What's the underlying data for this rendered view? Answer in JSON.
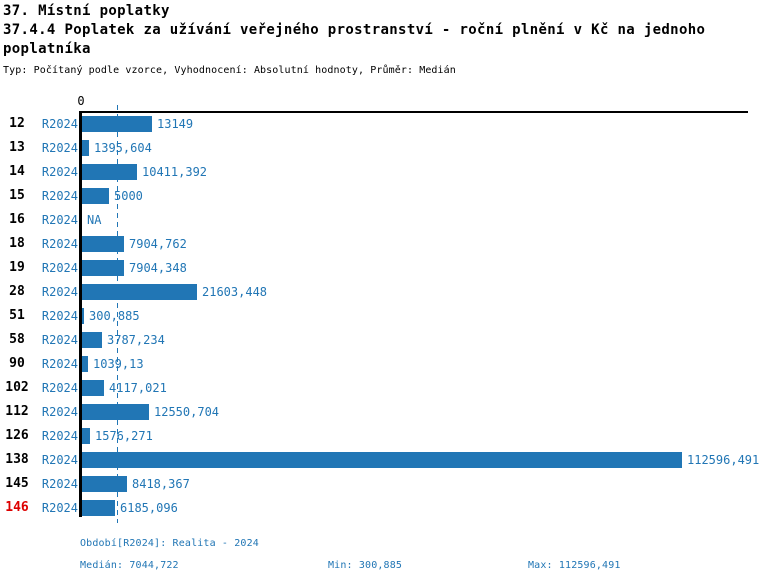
{
  "header": {
    "title": "37. Místní poplatky",
    "subtitle": "37.4.4 Poplatek za užívání veřejného prostranství - roční plnění v Kč na jednoho poplatníka",
    "meta": "Typ: Počítaný podle vzorce, Vyhodnocení: Absolutní hodnoty, Průměr: Medián"
  },
  "chart_data": {
    "type": "bar",
    "orientation": "horizontal",
    "title": "37.4.4 Poplatek za užívání veřejného prostranství - roční plnění v Kč na jednoho poplatníka",
    "zero_tick_label": "0",
    "xlim": [
      0,
      112596.491
    ],
    "grid": false,
    "median_value": 7044.722,
    "highlight_category": "146",
    "categories": [
      "12",
      "13",
      "14",
      "15",
      "16",
      "18",
      "19",
      "28",
      "51",
      "58",
      "90",
      "102",
      "112",
      "126",
      "138",
      "145",
      "146"
    ],
    "series": [
      {
        "name": "R2024",
        "values": [
          13149,
          1395.604,
          10411.392,
          5000,
          null,
          7904.762,
          7904.348,
          21603.448,
          300.885,
          3787.234,
          1039.13,
          4117.021,
          12550.704,
          1576.271,
          112596.491,
          8418.367,
          6185.096
        ],
        "value_labels": [
          "13149",
          "1395,604",
          "10411,392",
          "5000",
          "NA",
          "7904,762",
          "7904,348",
          "21603,448",
          "300,885",
          "3787,234",
          "1039,13",
          "4117,021",
          "12550,704",
          "1576,271",
          "112596,491",
          "8418,367",
          "6185,096"
        ]
      }
    ]
  },
  "footer": {
    "period_line": "Období[R2024]: Realita - 2024",
    "median_label": "Medián: 7044,722",
    "min_label": "Min: 300,885",
    "max_label": "Max: 112596,491"
  },
  "colors": {
    "bar_blue": "#2176b5",
    "text_blue": "#2176b5",
    "highlight_red": "#dd0000",
    "axis_black": "#000000"
  }
}
